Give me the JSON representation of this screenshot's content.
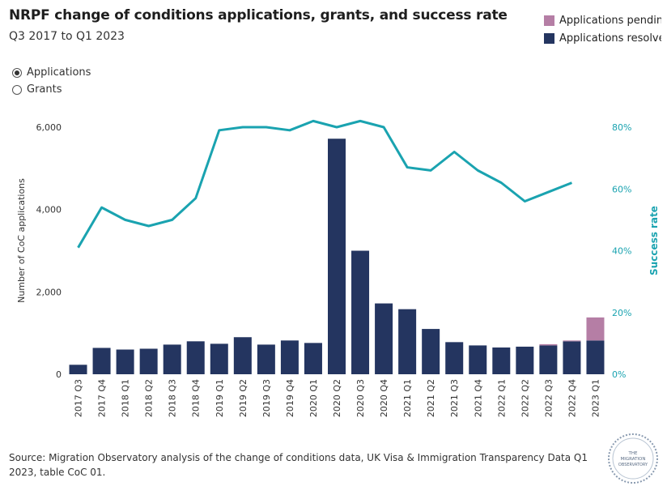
{
  "title": "NRPF change of conditions applications, grants, and success rate",
  "subtitle": "Q3 2017 to Q1 2023",
  "legend": [
    {
      "label": "Applications pending",
      "color": "#b57ea5"
    },
    {
      "label": "Applications resolved",
      "color": "#243560"
    }
  ],
  "toggle": {
    "options": [
      {
        "label": "Applications",
        "selected": true
      },
      {
        "label": "Grants",
        "selected": false
      }
    ]
  },
  "source": "Source: Migration Observatory analysis of the change of conditions data, UK Visa & Immigration Transparency Data Q1 2023, table CoC 01.",
  "logo_text": "THE MIGRATION OBSERVATORY",
  "colors": {
    "bar": "#243560",
    "pending": "#b57ea5",
    "rate": "#1aa3b0"
  },
  "chart_data": {
    "type": "bar",
    "categories": [
      "2017 Q3",
      "2017 Q4",
      "2018 Q1",
      "2018 Q2",
      "2018 Q3",
      "2018 Q4",
      "2019 Q1",
      "2019 Q2",
      "2019 Q3",
      "2019 Q4",
      "2020 Q1",
      "2020 Q2",
      "2020 Q3",
      "2020 Q4",
      "2021 Q1",
      "2021 Q2",
      "2021 Q3",
      "2021 Q4",
      "2022 Q1",
      "2022 Q2",
      "2022 Q3",
      "2022 Q4",
      "2023 Q1"
    ],
    "series": [
      {
        "name": "Applications resolved",
        "type": "bar",
        "axis": "left",
        "values": [
          230,
          640,
          600,
          620,
          720,
          800,
          740,
          900,
          720,
          820,
          760,
          5720,
          3000,
          1720,
          1580,
          1100,
          780,
          700,
          650,
          670,
          700,
          800,
          820
        ]
      },
      {
        "name": "Applications pending",
        "type": "bar",
        "axis": "left",
        "stacked": true,
        "values": [
          0,
          0,
          0,
          0,
          0,
          0,
          0,
          0,
          0,
          0,
          0,
          0,
          0,
          0,
          0,
          0,
          0,
          0,
          0,
          0,
          30,
          20,
          560
        ]
      },
      {
        "type": "line",
        "axis": "right",
        "values": [
          41,
          54,
          50,
          48,
          50,
          57,
          79,
          80,
          80,
          79,
          82,
          80,
          82,
          80,
          67,
          66,
          72,
          66,
          62,
          56,
          59,
          62,
          null
        ]
      }
    ],
    "ylabel": "Number of CoC applications",
    "y2label": "Success rate",
    "ylim": [
      0,
      6000
    ],
    "yticks": [
      "0",
      "2,000",
      "4,000",
      "6,000"
    ],
    "ytick_values": [
      0,
      2000,
      4000,
      6000
    ],
    "y2lim": [
      0,
      80
    ],
    "y2ticks": [
      "0%",
      "20%",
      "40%",
      "60%",
      "80%"
    ],
    "y2tick_values": [
      0,
      20,
      40,
      60,
      80
    ],
    "grid": false,
    "legend_position": "top-right"
  }
}
